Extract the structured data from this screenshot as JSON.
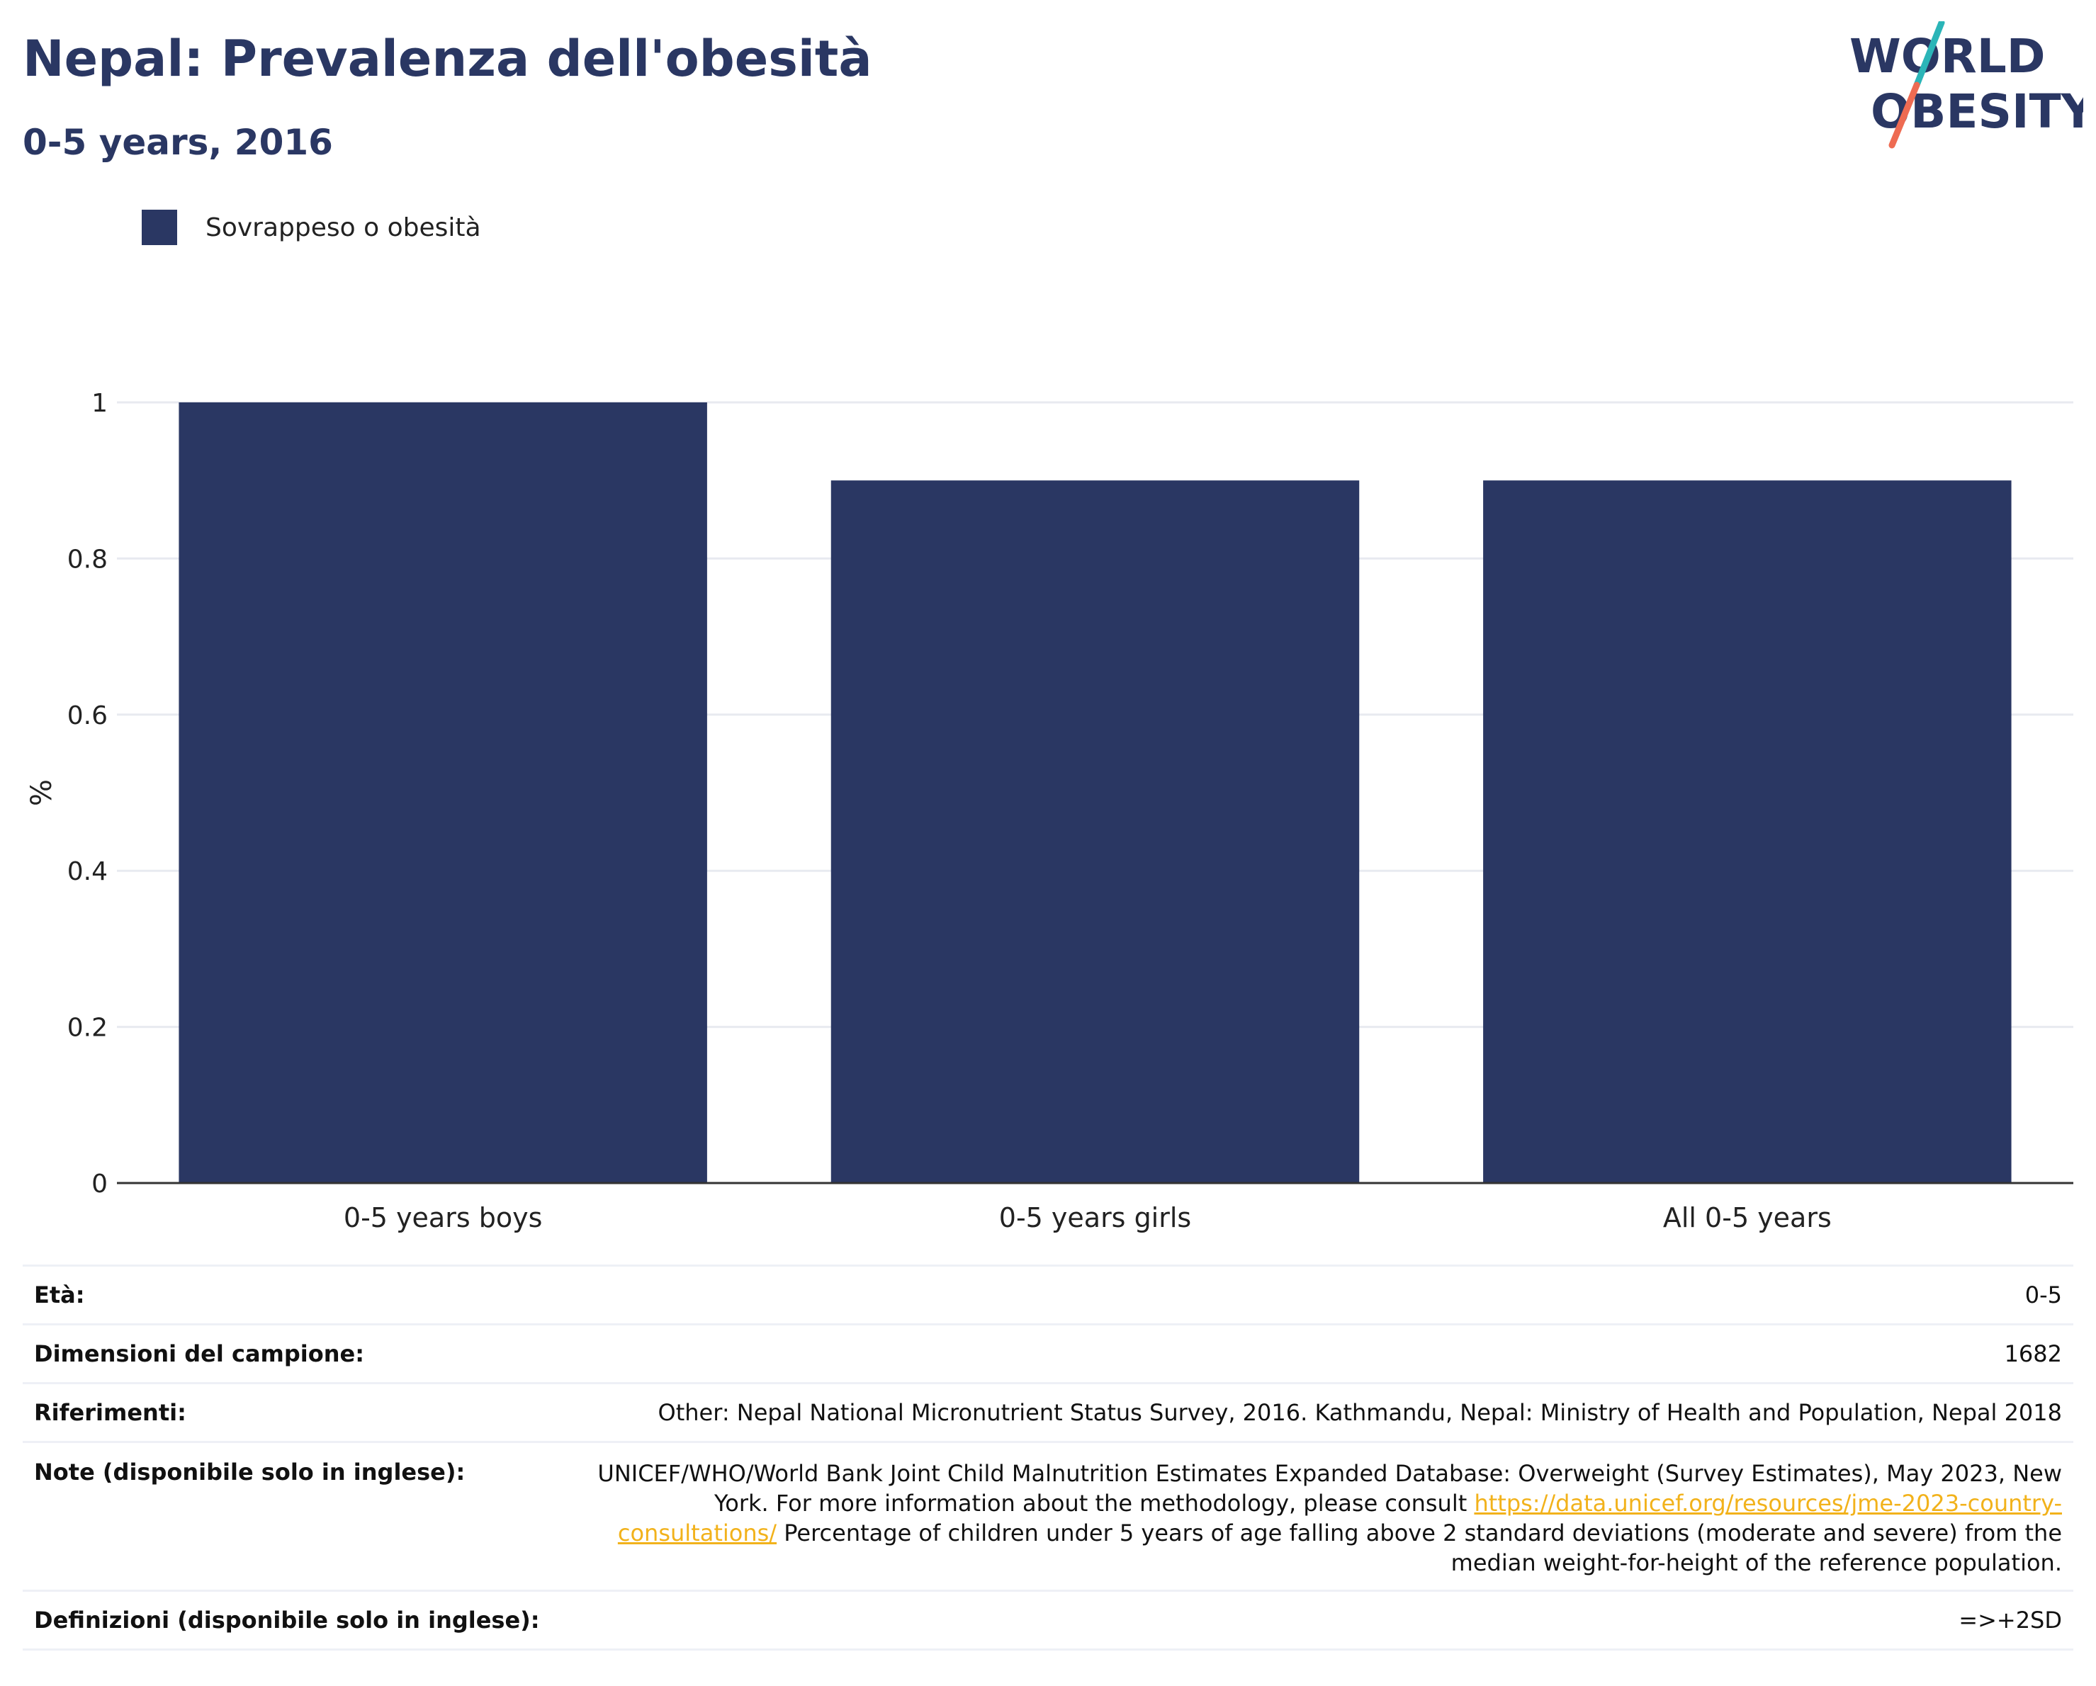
{
  "header": {
    "title": "Nepal: Prevalenza dell'obesità",
    "subtitle": "0-5 years, 2016"
  },
  "logo": {
    "line1": "WORLD",
    "line2": "OBESITY",
    "colors": {
      "text": "#2a3763",
      "slash_top": "#2bb5b8",
      "slash_bottom": "#ee6b52"
    }
  },
  "legend": {
    "label": "Sovrappeso o obesità",
    "color": "#2a3763"
  },
  "chart_data": {
    "type": "bar",
    "categories": [
      "0-5 years boys",
      "0-5 years girls",
      "All 0-5 years"
    ],
    "series": [
      {
        "name": "Sovrappeso o obesità",
        "values": [
          1.0,
          0.9,
          0.9
        ],
        "color": "#2a3763"
      }
    ],
    "ylabel": "%",
    "ylim": [
      0,
      1
    ],
    "yticks": [
      0,
      0.2,
      0.4,
      0.6,
      0.8,
      1
    ],
    "ytick_labels": [
      "0",
      "0.2",
      "0.4",
      "0.6",
      "0.8",
      "1"
    ],
    "grid": true,
    "legend_position": "top-left"
  },
  "info": {
    "age": {
      "label": "Età:",
      "value": "0-5"
    },
    "sample": {
      "label": "Dimensioni del campione:",
      "value": "1682"
    },
    "references": {
      "label": "Riferimenti:",
      "value": "Other: Nepal National Micronutrient Status Survey, 2016. Kathmandu, Nepal: Ministry of Health and Population, Nepal 2018"
    },
    "notes": {
      "label": "Note (disponibile solo in inglese):",
      "text1": "UNICEF/WHO/World Bank Joint Child Malnutrition Estimates Expanded Database: Overweight (Survey Estimates), May 2023, New York. For more information about the methodology, please consult ",
      "link": "https://data.unicef.org/resources/jme-2023-country-consultations/",
      "text2": " Percentage of children under 5 years of age falling above 2 standard deviations (moderate and severe) from the median weight-for-height of the reference population."
    },
    "definitions": {
      "label": "Definizioni (disponibile solo in inglese):",
      "value": "=>+2SD"
    }
  }
}
